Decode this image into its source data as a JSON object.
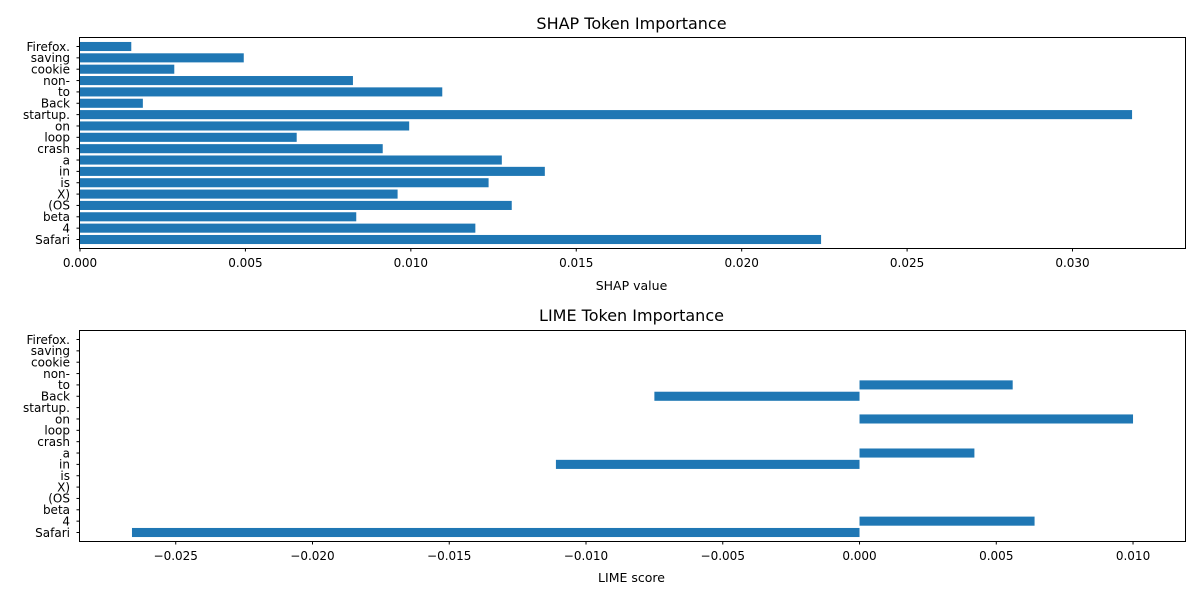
{
  "chart_data": [
    {
      "type": "bar",
      "orientation": "horizontal",
      "title": "SHAP Token Importance",
      "xlabel": "SHAP value",
      "ylabel": "",
      "categories": [
        "Safari",
        "4",
        "beta",
        "(OS",
        "X)",
        "is",
        "in",
        "a",
        "crash",
        "loop",
        "on",
        "startup.",
        "Back",
        "to",
        "non-",
        "cookie",
        "saving",
        "Firefox."
      ],
      "values": [
        0.0224,
        0.01195,
        0.00835,
        0.01305,
        0.0096,
        0.01235,
        0.01405,
        0.01275,
        0.00915,
        0.00655,
        0.00995,
        0.0318,
        0.0019,
        0.01095,
        0.00825,
        0.00285,
        0.00495,
        0.00155
      ],
      "xlim": [
        0,
        0.0334
      ],
      "xticks": [
        0.0,
        0.005,
        0.01,
        0.015,
        0.02,
        0.025,
        0.03
      ],
      "xtick_labels": [
        "0.000",
        "0.005",
        "0.010",
        "0.015",
        "0.020",
        "0.025",
        "0.030"
      ],
      "grid": false,
      "color": "#1f77b4"
    },
    {
      "type": "bar",
      "orientation": "horizontal",
      "title": "LIME Token Importance",
      "xlabel": "LIME score",
      "ylabel": "",
      "categories": [
        "Safari",
        "4",
        "beta",
        "(OS",
        "X)",
        "is",
        "in",
        "a",
        "crash",
        "loop",
        "on",
        "startup.",
        "Back",
        "to",
        "non-",
        "cookie",
        "saving",
        "Firefox."
      ],
      "values": [
        -0.0266,
        0.0064,
        0,
        0,
        0,
        0,
        -0.0111,
        0.0042,
        0,
        0,
        0.01,
        0,
        -0.0075,
        0.0056,
        0,
        0,
        0,
        0
      ],
      "xlim": [
        -0.0285,
        0.0119
      ],
      "xticks": [
        -0.025,
        -0.02,
        -0.015,
        -0.01,
        -0.005,
        0.0,
        0.005,
        0.01
      ],
      "xtick_labels": [
        "−0.025",
        "−0.020",
        "−0.015",
        "−0.010",
        "−0.005",
        "0.000",
        "0.005",
        "0.010"
      ],
      "grid": false,
      "color": "#1f77b4"
    }
  ]
}
